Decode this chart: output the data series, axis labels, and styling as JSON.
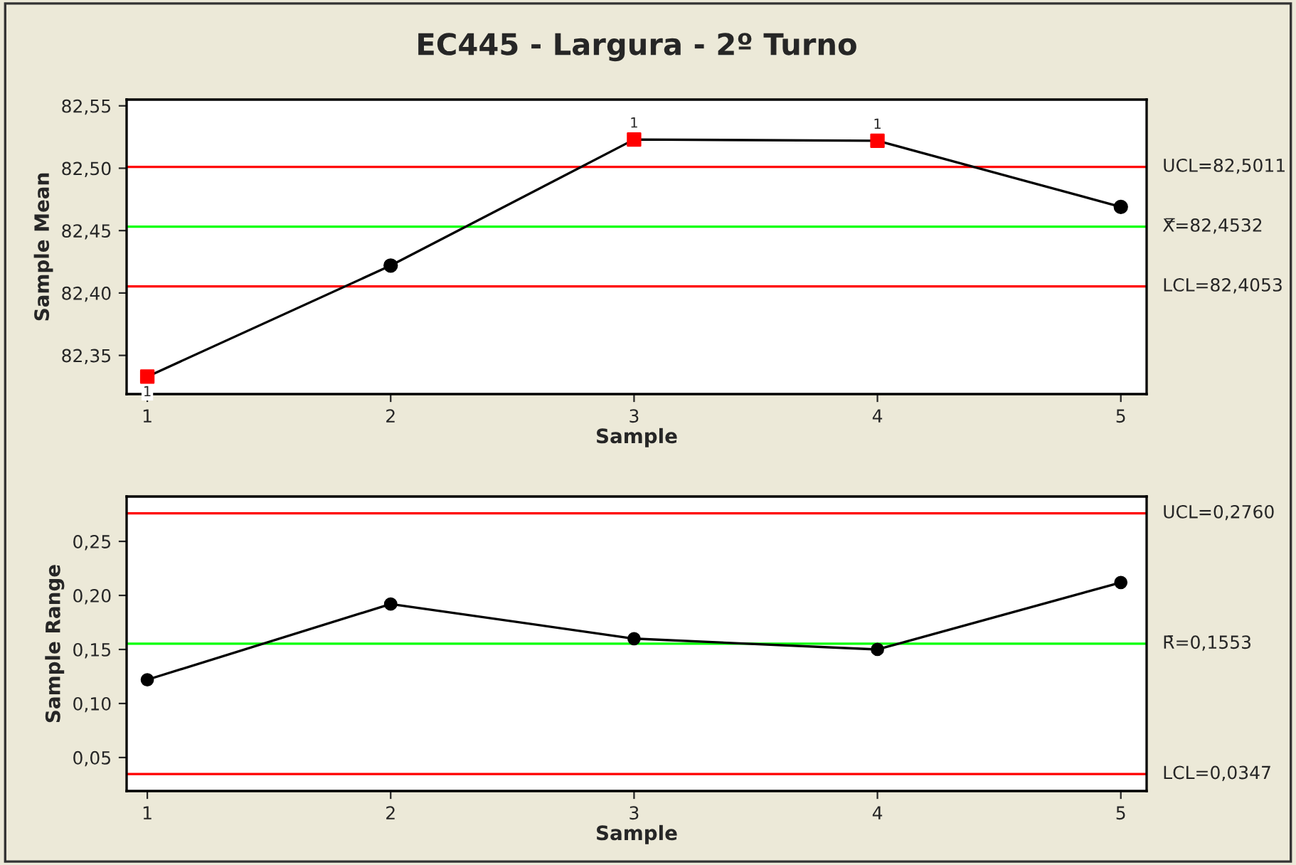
{
  "chart_data": [
    {
      "type": "line",
      "title": "EC445 - Largura - 2º Turno",
      "xlabel": "Sample",
      "ylabel": "Sample Mean",
      "x": [
        1,
        2,
        3,
        4,
        5
      ],
      "series": [
        {
          "color": "#000000",
          "marker": "none",
          "values": [
            82.333,
            82.422,
            82.523,
            82.522,
            82.469
          ]
        },
        {
          "type": "scatter",
          "color": "#000000",
          "marker": "circle",
          "values": [
            null,
            82.422,
            null,
            null,
            82.469
          ]
        },
        {
          "type": "scatter",
          "color": "#ff0000",
          "marker": "square",
          "values": [
            82.333,
            null,
            82.523,
            82.522,
            null
          ]
        }
      ],
      "xlim": [
        0.915,
        5.106
      ],
      "xticks": [
        1,
        2,
        3,
        4,
        5
      ],
      "ylim": [
        82.319,
        82.555
      ],
      "yticks": [
        {
          "value": 82.35,
          "label": "82,35"
        },
        {
          "value": 82.4,
          "label": "82,40"
        },
        {
          "value": 82.45,
          "label": "82,45"
        },
        {
          "value": 82.5,
          "label": "82,50"
        },
        {
          "value": 82.55,
          "label": "82,55"
        }
      ],
      "ref_lines": [
        {
          "axis": "y",
          "value": 82.5011,
          "label": "UCL=82,5011",
          "color": "#ff0000"
        },
        {
          "axis": "y",
          "value": 82.4532,
          "label": "X̿=82,4532",
          "color": "#00ff00"
        },
        {
          "axis": "y",
          "value": 82.4053,
          "label": "LCL=82,4053",
          "color": "#ff0000"
        }
      ],
      "annotations": [
        {
          "text": "1",
          "x": 1,
          "y": 82.333
        },
        {
          "text": "1",
          "x": 3,
          "y": 82.523
        },
        {
          "text": "1",
          "x": 4,
          "y": 82.522
        }
      ],
      "grid": false,
      "legend": false
    },
    {
      "type": "line",
      "xlabel": "Sample",
      "ylabel": "Sample Range",
      "x": [
        1,
        2,
        3,
        4,
        5
      ],
      "series": [
        {
          "color": "#000000",
          "marker": "circle",
          "values": [
            0.122,
            0.192,
            0.16,
            0.15,
            0.212
          ]
        }
      ],
      "xlim": [
        0.915,
        5.106
      ],
      "xticks": [
        1,
        2,
        3,
        4,
        5
      ],
      "ylim": [
        0.019,
        0.2915
      ],
      "yticks": [
        {
          "value": 0.05,
          "label": "0,05"
        },
        {
          "value": 0.1,
          "label": "0,10"
        },
        {
          "value": 0.15,
          "label": "0,15"
        },
        {
          "value": 0.2,
          "label": "0,20"
        },
        {
          "value": 0.25,
          "label": "0,25"
        }
      ],
      "ref_lines": [
        {
          "axis": "y",
          "value": 0.276,
          "label": "UCL=0,2760",
          "color": "#ff0000"
        },
        {
          "axis": "y",
          "value": 0.1553,
          "label": "R̄=0,1553",
          "color": "#00ff00"
        },
        {
          "axis": "y",
          "value": 0.0347,
          "label": "LCL=0,0347",
          "color": "#ff0000"
        }
      ],
      "grid": false,
      "legend": false
    }
  ]
}
